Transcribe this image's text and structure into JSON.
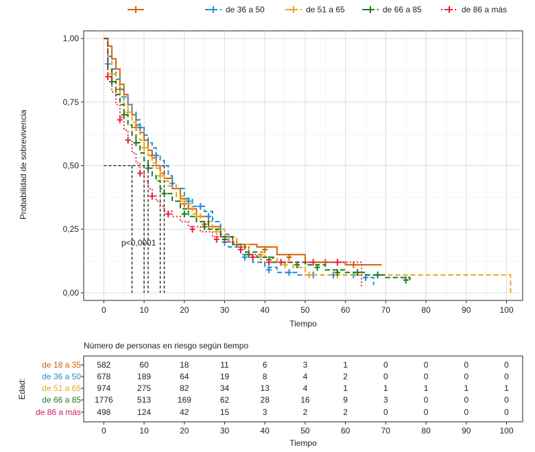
{
  "chart_data": {
    "type": "line",
    "subtype": "kaplan-meier step curves with censor marks",
    "legend": {
      "placement": "top",
      "entries": [
        {
          "label": "",
          "color": "#d95f02",
          "dash": "solid"
        },
        {
          "label": "de 36 a 50",
          "color": "#1b8fd4",
          "dash": "dashed"
        },
        {
          "label": "de 51 a 65",
          "color": "#e6a817",
          "dash": "dashed"
        },
        {
          "label": "de 66 a 85",
          "color": "#1a7a1a",
          "dash": "dashed"
        },
        {
          "label": "de 86 a más",
          "color": "#e8223a",
          "dash": "dotted"
        }
      ]
    },
    "ylabel": "Probabilidad de sobrevivencia",
    "xlabel": "Tiempo",
    "xlim": [
      -5,
      104
    ],
    "ylim": [
      -0.03,
      1.03
    ],
    "grid": true,
    "x_ticks": [
      0,
      10,
      20,
      30,
      40,
      50,
      60,
      70,
      80,
      90,
      100
    ],
    "y_ticks": [
      {
        "value": 0,
        "label": "0,00"
      },
      {
        "value": 0.25,
        "label": "0,25"
      },
      {
        "value": 0.5,
        "label": "0,50"
      },
      {
        "value": 0.75,
        "label": "0,75"
      },
      {
        "value": 1,
        "label": "1,00"
      }
    ],
    "annotation": "p<0,0001",
    "median_lines": {
      "y": 0.5,
      "x": [
        7,
        10,
        11,
        14,
        15
      ]
    },
    "series": [
      {
        "color": "#d95f02",
        "dash": "solid",
        "points": [
          [
            0,
            1
          ],
          [
            1,
            0.97
          ],
          [
            2,
            0.92
          ],
          [
            3,
            0.88
          ],
          [
            4,
            0.82
          ],
          [
            5,
            0.78
          ],
          [
            6,
            0.74
          ],
          [
            7,
            0.7
          ],
          [
            8,
            0.66
          ],
          [
            9,
            0.63
          ],
          [
            10,
            0.6
          ],
          [
            11,
            0.56
          ],
          [
            12,
            0.53
          ],
          [
            13,
            0.5
          ],
          [
            14,
            0.47
          ],
          [
            15,
            0.45
          ],
          [
            17,
            0.41
          ],
          [
            19,
            0.37
          ],
          [
            21,
            0.33
          ],
          [
            23,
            0.3
          ],
          [
            26,
            0.26
          ],
          [
            29,
            0.22
          ],
          [
            32,
            0.19
          ],
          [
            38,
            0.18
          ],
          [
            43,
            0.15
          ],
          [
            50,
            0.12
          ],
          [
            60,
            0.11
          ],
          [
            69,
            0.11
          ]
        ],
        "censor": [
          [
            4,
            0.8
          ],
          [
            8,
            0.65
          ],
          [
            12,
            0.54
          ],
          [
            20,
            0.35
          ],
          [
            25,
            0.27
          ],
          [
            30,
            0.2
          ],
          [
            40,
            0.17
          ],
          [
            46,
            0.14
          ],
          [
            55,
            0.12
          ],
          [
            62,
            0.11
          ]
        ]
      },
      {
        "color": "#1b8fd4",
        "dash": "dashed",
        "points": [
          [
            0,
            1
          ],
          [
            1,
            0.93
          ],
          [
            2,
            0.88
          ],
          [
            3,
            0.84
          ],
          [
            4,
            0.8
          ],
          [
            5,
            0.77
          ],
          [
            6,
            0.74
          ],
          [
            7,
            0.71
          ],
          [
            8,
            0.68
          ],
          [
            9,
            0.65
          ],
          [
            10,
            0.62
          ],
          [
            11,
            0.59
          ],
          [
            12,
            0.57
          ],
          [
            13,
            0.54
          ],
          [
            14,
            0.52
          ],
          [
            15,
            0.5
          ],
          [
            16,
            0.46
          ],
          [
            17,
            0.43
          ],
          [
            18,
            0.41
          ],
          [
            20,
            0.37
          ],
          [
            22,
            0.34
          ],
          [
            24,
            0.34
          ],
          [
            25,
            0.32
          ],
          [
            27,
            0.28
          ],
          [
            29,
            0.23
          ],
          [
            31,
            0.18
          ],
          [
            34,
            0.15
          ],
          [
            37,
            0.12
          ],
          [
            40,
            0.1
          ],
          [
            43,
            0.08
          ],
          [
            48,
            0.07
          ],
          [
            55,
            0.07
          ],
          [
            60,
            0.07
          ],
          [
            63,
            0.07
          ],
          [
            66,
            0.06
          ],
          [
            67,
            0.03
          ]
        ],
        "censor": [
          [
            1,
            0.9
          ],
          [
            5,
            0.77
          ],
          [
            9,
            0.65
          ],
          [
            13,
            0.54
          ],
          [
            17,
            0.43
          ],
          [
            21,
            0.36
          ],
          [
            24,
            0.34
          ],
          [
            26,
            0.3
          ],
          [
            30,
            0.2
          ],
          [
            35,
            0.14
          ],
          [
            41,
            0.09
          ],
          [
            46,
            0.08
          ],
          [
            52,
            0.07
          ],
          [
            57,
            0.07
          ],
          [
            62,
            0.07
          ],
          [
            65,
            0.06
          ]
        ]
      },
      {
        "color": "#e6a817",
        "dash": "dashed",
        "points": [
          [
            0,
            1
          ],
          [
            1,
            0.91
          ],
          [
            2,
            0.86
          ],
          [
            3,
            0.82
          ],
          [
            4,
            0.78
          ],
          [
            5,
            0.74
          ],
          [
            6,
            0.71
          ],
          [
            7,
            0.67
          ],
          [
            8,
            0.64
          ],
          [
            9,
            0.6
          ],
          [
            10,
            0.57
          ],
          [
            11,
            0.54
          ],
          [
            12,
            0.51
          ],
          [
            13,
            0.49
          ],
          [
            14,
            0.46
          ],
          [
            15,
            0.44
          ],
          [
            16,
            0.42
          ],
          [
            18,
            0.38
          ],
          [
            20,
            0.35
          ],
          [
            22,
            0.31
          ],
          [
            24,
            0.28
          ],
          [
            27,
            0.25
          ],
          [
            30,
            0.22
          ],
          [
            33,
            0.19
          ],
          [
            36,
            0.16
          ],
          [
            40,
            0.14
          ],
          [
            43,
            0.12
          ],
          [
            47,
            0.1
          ],
          [
            50,
            0.07
          ],
          [
            55,
            0.07
          ],
          [
            60,
            0.07
          ],
          [
            70,
            0.07
          ],
          [
            80,
            0.07
          ],
          [
            90,
            0.07
          ],
          [
            101,
            0.07
          ],
          [
            101,
            0.0
          ]
        ],
        "censor": [
          [
            2,
            0.86
          ],
          [
            6,
            0.71
          ],
          [
            10,
            0.57
          ],
          [
            14,
            0.46
          ],
          [
            19,
            0.36
          ],
          [
            23,
            0.3
          ],
          [
            28,
            0.24
          ],
          [
            34,
            0.18
          ],
          [
            39,
            0.15
          ],
          [
            45,
            0.11
          ],
          [
            51,
            0.07
          ],
          [
            58,
            0.07
          ]
        ]
      },
      {
        "color": "#1a7a1a",
        "dash": "dashed",
        "points": [
          [
            0,
            1
          ],
          [
            1,
            0.88
          ],
          [
            2,
            0.83
          ],
          [
            3,
            0.78
          ],
          [
            4,
            0.74
          ],
          [
            5,
            0.7
          ],
          [
            6,
            0.66
          ],
          [
            7,
            0.62
          ],
          [
            8,
            0.59
          ],
          [
            9,
            0.55
          ],
          [
            10,
            0.52
          ],
          [
            11,
            0.49
          ],
          [
            12,
            0.46
          ],
          [
            13,
            0.44
          ],
          [
            14,
            0.41
          ],
          [
            15,
            0.39
          ],
          [
            17,
            0.36
          ],
          [
            19,
            0.33
          ],
          [
            21,
            0.3
          ],
          [
            23,
            0.28
          ],
          [
            26,
            0.25
          ],
          [
            29,
            0.22
          ],
          [
            32,
            0.19
          ],
          [
            35,
            0.16
          ],
          [
            38,
            0.14
          ],
          [
            42,
            0.12
          ],
          [
            46,
            0.12
          ],
          [
            50,
            0.11
          ],
          [
            55,
            0.09
          ],
          [
            60,
            0.08
          ],
          [
            65,
            0.07
          ],
          [
            70,
            0.06
          ],
          [
            76,
            0.05
          ]
        ],
        "censor": [
          [
            2,
            0.83
          ],
          [
            5,
            0.7
          ],
          [
            8,
            0.59
          ],
          [
            11,
            0.49
          ],
          [
            15,
            0.39
          ],
          [
            20,
            0.31
          ],
          [
            25,
            0.26
          ],
          [
            30,
            0.21
          ],
          [
            36,
            0.15
          ],
          [
            41,
            0.13
          ],
          [
            48,
            0.11
          ],
          [
            53,
            0.1
          ],
          [
            58,
            0.08
          ],
          [
            63,
            0.08
          ],
          [
            68,
            0.07
          ],
          [
            75,
            0.05
          ]
        ]
      },
      {
        "color": "#e8223a",
        "dash": "dotted",
        "points": [
          [
            0,
            1
          ],
          [
            1,
            0.85
          ],
          [
            2,
            0.79
          ],
          [
            3,
            0.74
          ],
          [
            4,
            0.69
          ],
          [
            5,
            0.64
          ],
          [
            6,
            0.6
          ],
          [
            7,
            0.55
          ],
          [
            8,
            0.51
          ],
          [
            9,
            0.47
          ],
          [
            10,
            0.44
          ],
          [
            11,
            0.41
          ],
          [
            12,
            0.38
          ],
          [
            13,
            0.36
          ],
          [
            14,
            0.34
          ],
          [
            15,
            0.32
          ],
          [
            17,
            0.3
          ],
          [
            19,
            0.28
          ],
          [
            21,
            0.26
          ],
          [
            24,
            0.24
          ],
          [
            27,
            0.22
          ],
          [
            30,
            0.2
          ],
          [
            33,
            0.18
          ],
          [
            36,
            0.15
          ],
          [
            39,
            0.12
          ],
          [
            42,
            0.12
          ],
          [
            46,
            0.12
          ],
          [
            50,
            0.12
          ],
          [
            55,
            0.12
          ],
          [
            60,
            0.12
          ],
          [
            63,
            0.12
          ],
          [
            64,
            0.02
          ]
        ],
        "censor": [
          [
            1,
            0.85
          ],
          [
            4,
            0.68
          ],
          [
            6,
            0.6
          ],
          [
            9,
            0.47
          ],
          [
            12,
            0.38
          ],
          [
            16,
            0.31
          ],
          [
            22,
            0.25
          ],
          [
            28,
            0.21
          ],
          [
            34,
            0.17
          ],
          [
            37,
            0.14
          ],
          [
            41,
            0.12
          ],
          [
            44,
            0.12
          ],
          [
            52,
            0.12
          ],
          [
            58,
            0.12
          ]
        ]
      }
    ]
  },
  "risk_table": {
    "title": "Número de personas en riesgo según tiempo",
    "row_axis_label": "Edad:",
    "xlabel": "Tiempo",
    "x_ticks": [
      0,
      10,
      20,
      30,
      40,
      50,
      60,
      70,
      80,
      90,
      100
    ],
    "rows": [
      {
        "label": "de 18 a 35",
        "color": "#d95f02",
        "values": [
          "582",
          "60",
          "18",
          "11",
          "6",
          "3",
          "1",
          "0",
          "0",
          "0",
          "0"
        ]
      },
      {
        "label": "de 36 a 50",
        "color": "#1b8fd4",
        "values": [
          "678",
          "189",
          "64",
          "19",
          "8",
          "4",
          "2",
          "0",
          "0",
          "0",
          "0"
        ]
      },
      {
        "label": "de 51 a 65",
        "color": "#e6a817",
        "values": [
          "974",
          "275",
          "82",
          "34",
          "13",
          "4",
          "1",
          "1",
          "1",
          "1",
          "1"
        ]
      },
      {
        "label": "de 66 a 85",
        "color": "#1a7a1a",
        "values": [
          "1776",
          "513",
          "169",
          "62",
          "28",
          "16",
          "9",
          "3",
          "0",
          "0",
          "0"
        ]
      },
      {
        "label": "de 86 a más",
        "color": "#d4145a",
        "values": [
          "498",
          "124",
          "42",
          "15",
          "3",
          "2",
          "2",
          "0",
          "0",
          "0",
          "0"
        ]
      }
    ]
  }
}
